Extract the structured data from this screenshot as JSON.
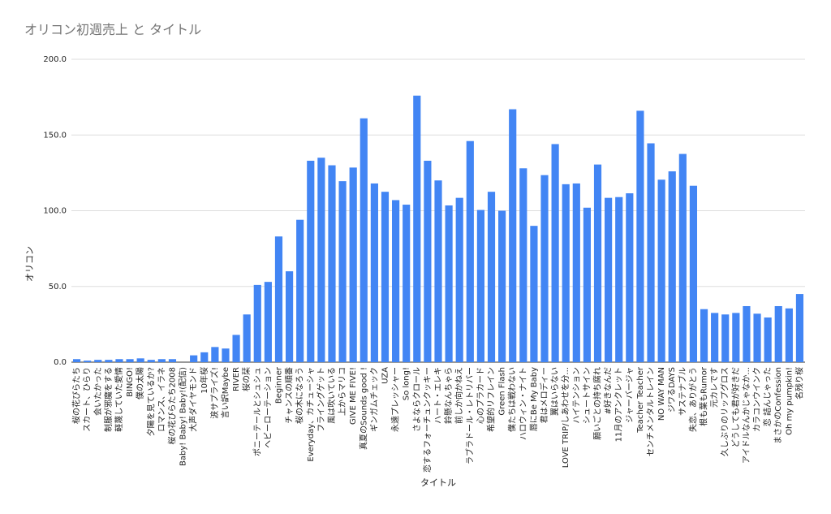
{
  "chart_data": {
    "type": "bar",
    "title": "オリコン初週売上 と タイトル",
    "x_label": "タイトル",
    "y_label": "オリコン",
    "categories": [
      "桜の花びらたち",
      "スカート、ひらり",
      "会いたかった",
      "制服が邪魔をする",
      "軽蔑していた愛情",
      "BINGO!",
      "僕の太陽",
      "夕陽を見ているか?",
      "ロマンス、イラネ",
      "桜の花びらたち2008",
      "Baby! Baby! Baby!(配信)",
      "大声ダイヤモンド",
      "10年桜",
      "涙サプライズ!",
      "言い訳Maybe",
      "RIVER",
      "桜の栞",
      "ポニーテールとシュシュ",
      "ヘビーローテーション",
      "Beginner",
      "チャンスの順番",
      "桜の木になろう",
      "Everyday、カチューシャ",
      "フライングゲット",
      "風は吹いている",
      "上からマリコ",
      "GIVE ME FIVE!",
      "真夏のSounds good !",
      "ギンガムチェック",
      "UZA",
      "永遠プレッシャー",
      "So long!",
      "さよならクロール",
      "恋するフォーチュンクッキー",
      "ハート・エレキ",
      "鈴懸なんちゃら",
      "前しか向かねえ",
      "ラブラドール・レトリバー",
      "心のプラカード",
      "希望的リフレイン",
      "Green Flash",
      "僕たちは戦わない",
      "ハロウィン・ナイト",
      "唇にBe My Baby",
      "君はメロディー",
      "翼はいらない",
      "LOVE TRIP/しあわせを分...",
      "ハイテンション",
      "シュートサイン",
      "願いごとの持ち腐れ",
      "#好きなんだ",
      "11月のアンクレット",
      "ジャーバージャ",
      "Teacher Teacher",
      "センチメンタルトレイン",
      "NO WAY MAN",
      "ジワるDAYS",
      "サステナブル",
      "失恋、ありがとう",
      "根も葉もRumor",
      "元カレです",
      "久しぶりのリップグロス",
      "どうしても君が好きだ",
      "アイドルなんかじゃなか...",
      "カラコンウインク",
      "恋 詰んじゃった",
      "まさかのConfession",
      "Oh my pumpkin!",
      "名残り桜"
    ],
    "values": [
      2,
      1,
      1.5,
      1.5,
      2,
      2,
      2.5,
      1.5,
      2,
      2,
      0,
      4.5,
      6.5,
      10,
      9,
      18,
      31.5,
      51,
      53,
      83,
      60,
      94,
      133,
      135,
      130,
      119.5,
      128.5,
      161,
      118,
      112.5,
      107,
      104,
      176,
      133,
      120,
      103.5,
      108.5,
      146,
      100.5,
      112.5,
      100,
      167,
      128,
      90,
      123.5,
      144,
      117.5,
      118,
      102,
      130.5,
      108.5,
      109,
      111.5,
      166,
      144.5,
      120.5,
      126,
      137.5,
      116.5,
      35,
      32.5,
      31.5,
      32.5,
      37,
      32,
      29.5,
      37,
      35.5,
      45
    ],
    "color": "#4285f4",
    "ylim": [
      0,
      200
    ],
    "yticks": [
      {
        "value": 0,
        "label": "0.0"
      },
      {
        "value": 50,
        "label": "50.0"
      },
      {
        "value": 100,
        "label": "100.0"
      },
      {
        "value": 150,
        "label": "150.0"
      },
      {
        "value": 200,
        "label": "200.0"
      }
    ],
    "grid": true
  }
}
